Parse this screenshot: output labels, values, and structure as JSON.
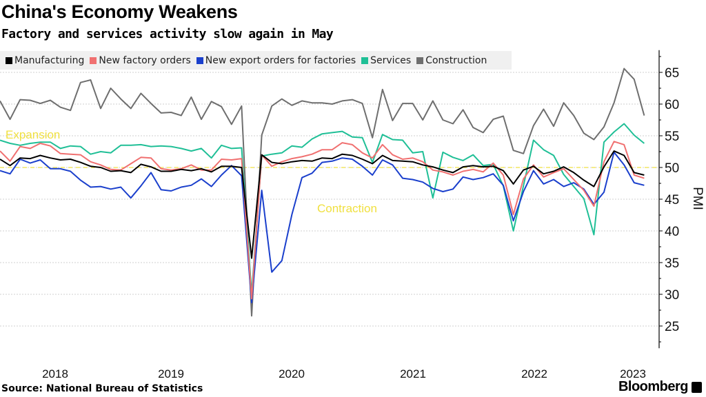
{
  "title": "China's Economy Weakens",
  "subtitle": "Factory and services activity slow again in May",
  "source": "Source: National Bureau of Statistics",
  "brand": "Bloomberg",
  "chart_data": {
    "type": "line",
    "title": "China's Economy Weakens",
    "subtitle": "Factory and services activity slow again in May",
    "ylabel": "PMI",
    "xlabel": "",
    "x_start": "2018-01",
    "x_end": "2023-05",
    "frequency": "monthly",
    "x_tick_labels": [
      "2018",
      "2019",
      "2020",
      "2021",
      "2022",
      "2023"
    ],
    "y_ticks": [
      25,
      30,
      35,
      40,
      45,
      50,
      55,
      60,
      65
    ],
    "ylim": [
      21.5,
      68.5
    ],
    "y_axis_side": "right",
    "grid": true,
    "legend_placement": "top-left",
    "reference_line": {
      "value": 50,
      "color": "#f0e040",
      "style": "dashed"
    },
    "annotations": [
      {
        "text": "Expansion",
        "color": "#f0e040"
      },
      {
        "text": "Contraction",
        "color": "#f0e040"
      }
    ],
    "series": [
      {
        "name": "Manufacturing",
        "color": "#000000",
        "values": [
          51.3,
          50.3,
          51.5,
          51.4,
          51.9,
          51.5,
          51.2,
          51.3,
          50.8,
          50.2,
          50.0,
          49.4,
          49.5,
          49.2,
          50.5,
          50.1,
          49.4,
          49.4,
          49.7,
          49.5,
          49.8,
          49.3,
          50.2,
          50.2,
          50.0,
          35.7,
          52.0,
          50.8,
          50.6,
          50.9,
          51.1,
          51.0,
          51.5,
          51.4,
          52.1,
          51.9,
          51.3,
          50.6,
          51.9,
          51.1,
          51.0,
          50.9,
          50.4,
          50.1,
          49.6,
          49.2,
          50.1,
          50.3,
          50.1,
          50.2,
          49.5,
          47.4,
          49.6,
          50.2,
          49.0,
          49.4,
          50.1,
          49.2,
          48.0,
          47.0,
          50.1,
          52.6,
          51.9,
          49.2,
          48.8
        ]
      },
      {
        "name": "New factory orders",
        "color": "#f07070",
        "values": [
          52.6,
          51.0,
          53.3,
          53.0,
          53.8,
          53.4,
          52.2,
          52.1,
          52.0,
          50.9,
          50.4,
          49.7,
          49.6,
          50.6,
          51.6,
          51.5,
          49.8,
          49.6,
          49.8,
          50.4,
          49.6,
          49.6,
          51.3,
          51.2,
          51.4,
          29.3,
          52.0,
          50.2,
          50.9,
          51.4,
          51.7,
          52.1,
          52.8,
          52.8,
          53.9,
          53.6,
          52.3,
          51.5,
          53.6,
          52.0,
          51.3,
          51.5,
          50.9,
          49.6,
          49.3,
          48.8,
          49.4,
          49.7,
          49.3,
          50.7,
          48.8,
          42.6,
          48.2,
          50.4,
          48.5,
          49.2,
          49.8,
          48.1,
          46.4,
          43.9,
          50.9,
          54.1,
          53.6,
          48.8,
          48.3
        ]
      },
      {
        "name": "New export orders for factories",
        "color": "#1a3fcc",
        "values": [
          49.5,
          49.0,
          51.3,
          50.7,
          51.2,
          49.8,
          49.8,
          49.4,
          48.0,
          46.9,
          47.0,
          46.6,
          46.9,
          45.2,
          47.1,
          49.2,
          46.5,
          46.3,
          46.9,
          47.2,
          48.2,
          47.0,
          48.8,
          50.3,
          48.7,
          28.7,
          46.4,
          33.5,
          35.3,
          42.6,
          48.4,
          49.1,
          50.8,
          51.0,
          51.5,
          51.3,
          50.2,
          48.8,
          51.2,
          50.4,
          48.3,
          48.1,
          47.7,
          46.7,
          46.2,
          46.6,
          48.5,
          48.1,
          48.4,
          49.0,
          47.2,
          41.6,
          46.2,
          49.5,
          47.4,
          48.1,
          47.0,
          47.6,
          46.6,
          44.2,
          46.1,
          52.4,
          50.4,
          47.6,
          47.2
        ]
      },
      {
        "name": "Services",
        "color": "#1fbf96",
        "values": [
          54.3,
          53.8,
          53.5,
          53.8,
          54.0,
          54.0,
          53.0,
          53.4,
          53.3,
          52.1,
          52.5,
          52.3,
          53.5,
          53.5,
          53.6,
          53.3,
          53.4,
          53.3,
          53.0,
          52.6,
          53.0,
          51.5,
          53.5,
          53.0,
          53.1,
          30.1,
          51.8,
          52.1,
          52.3,
          53.4,
          53.2,
          54.5,
          55.3,
          55.5,
          55.7,
          54.8,
          54.7,
          50.8,
          55.2,
          54.4,
          54.3,
          52.3,
          52.5,
          45.2,
          52.4,
          51.6,
          51.1,
          52.0,
          50.3,
          50.5,
          47.1,
          40.0,
          47.1,
          54.3,
          52.8,
          51.9,
          48.9,
          47.0,
          45.1,
          39.4,
          54.0,
          55.6,
          56.9,
          55.1,
          53.8
        ]
      },
      {
        "name": "Construction",
        "color": "#6e6e6e",
        "values": [
          60.5,
          57.6,
          60.7,
          60.6,
          60.1,
          60.6,
          59.5,
          59.0,
          63.4,
          63.8,
          59.3,
          62.5,
          60.8,
          59.3,
          61.7,
          60.1,
          58.6,
          58.7,
          58.2,
          61.1,
          57.6,
          60.4,
          59.6,
          56.8,
          59.7,
          26.6,
          55.1,
          59.7,
          60.8,
          59.8,
          60.5,
          60.2,
          60.2,
          60.0,
          60.5,
          60.7,
          60.1,
          54.7,
          62.3,
          57.4,
          60.1,
          60.1,
          57.5,
          60.5,
          57.5,
          56.9,
          59.1,
          56.3,
          55.5,
          57.6,
          58.1,
          52.7,
          52.2,
          56.6,
          59.2,
          56.5,
          60.2,
          58.2,
          55.4,
          54.4,
          56.4,
          60.2,
          65.6,
          63.9,
          58.2
        ]
      }
    ]
  }
}
